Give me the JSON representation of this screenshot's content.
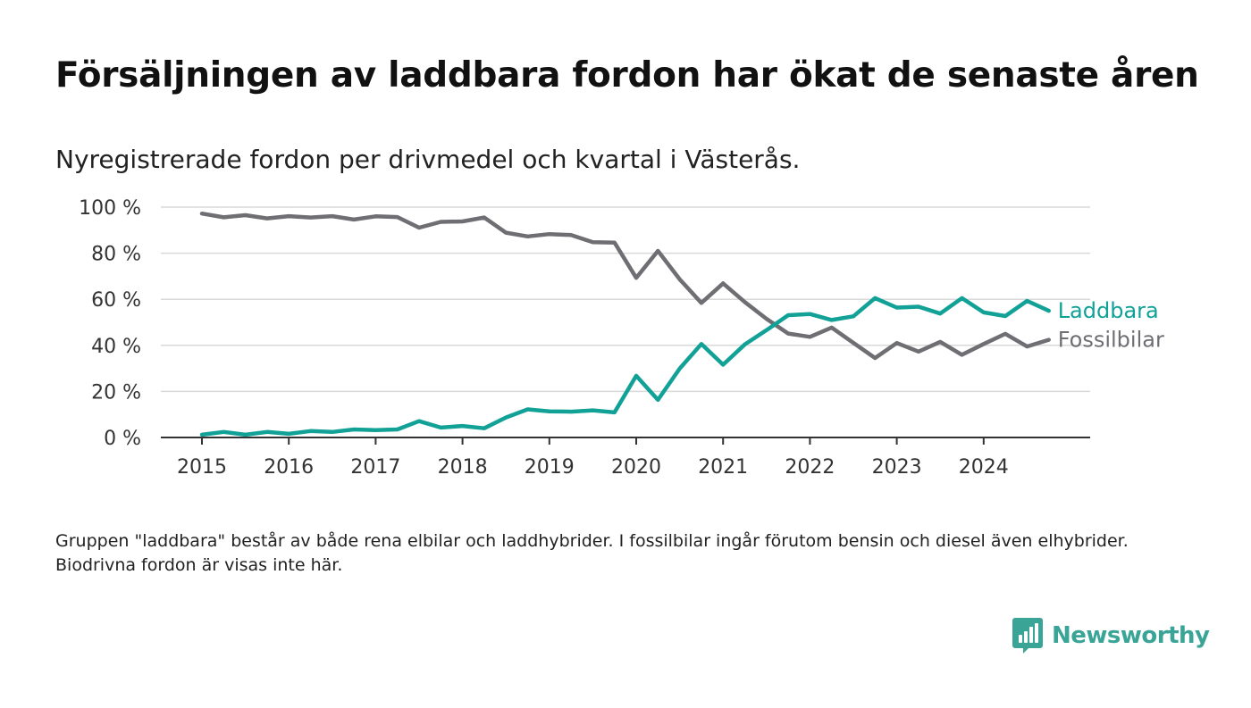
{
  "title": "Försäljningen av laddbara fordon har ökat de senaste åren",
  "subtitle": "Nyregistrerade fordon per drivmedel och kvartal i Västerås.",
  "note": "Gruppen \"laddbara\" består av både rena elbilar och laddhybrider. I fossilbilar ingår förutom bensin och diesel även elhybrider. Biodrivna fordon är visas inte här.",
  "brand": {
    "name": "Newsworthy",
    "icon": "newsworthy-logo-icon",
    "color": "#3aa597"
  },
  "chart_data": {
    "type": "line",
    "title": "Nyregistrerade fordon per drivmedel och kvartal i Västerås.",
    "xlabel": "",
    "ylabel": "",
    "ylim": [
      0,
      100
    ],
    "yticks": [
      0,
      20,
      40,
      60,
      80,
      100
    ],
    "ytick_labels": [
      "0 %",
      "20 %",
      "40 %",
      "60 %",
      "80 %",
      "100 %"
    ],
    "xticks": [
      "2015",
      "2016",
      "2017",
      "2018",
      "2019",
      "2020",
      "2021",
      "2022",
      "2023",
      "2024"
    ],
    "x": [
      "2015-Q1",
      "2015-Q2",
      "2015-Q3",
      "2015-Q4",
      "2016-Q1",
      "2016-Q2",
      "2016-Q3",
      "2016-Q4",
      "2017-Q1",
      "2017-Q2",
      "2017-Q3",
      "2017-Q4",
      "2018-Q1",
      "2018-Q2",
      "2018-Q3",
      "2018-Q4",
      "2019-Q1",
      "2019-Q2",
      "2019-Q3",
      "2019-Q4",
      "2020-Q1",
      "2020-Q2",
      "2020-Q3",
      "2020-Q4",
      "2021-Q1",
      "2021-Q2",
      "2021-Q3",
      "2021-Q4",
      "2022-Q1",
      "2022-Q2",
      "2022-Q3",
      "2022-Q4",
      "2023-Q1",
      "2023-Q2",
      "2023-Q3",
      "2023-Q4",
      "2024-Q1",
      "2024-Q2",
      "2024-Q3",
      "2024-Q4"
    ],
    "grid": true,
    "legend": "direct labels at line ends",
    "series": [
      {
        "name": "Laddbara",
        "color": "#12a196",
        "values": [
          1.2,
          2.4,
          1.2,
          2.4,
          1.6,
          2.8,
          2.4,
          3.5,
          3.2,
          3.5,
          7.1,
          4.3,
          5.0,
          4.0,
          8.7,
          12.2,
          11.3,
          11.2,
          11.8,
          10.9,
          26.8,
          16.3,
          29.9,
          40.6,
          31.6,
          40.4,
          46.6,
          53.1,
          53.6,
          51.0,
          52.6,
          60.5,
          56.4,
          56.8,
          53.8,
          60.5,
          54.3,
          52.7,
          59.3,
          55.0
        ]
      },
      {
        "name": "Fossilbilar",
        "color": "#6e6e73",
        "values": [
          97.2,
          95.6,
          96.5,
          95.1,
          96.1,
          95.5,
          96.1,
          94.6,
          96.0,
          95.7,
          91.1,
          93.6,
          93.8,
          95.5,
          88.9,
          87.3,
          88.3,
          87.9,
          84.8,
          84.6,
          69.3,
          81.0,
          68.7,
          58.4,
          66.9,
          58.8,
          51.5,
          45.1,
          43.7,
          47.7,
          41.1,
          34.5,
          41.0,
          37.3,
          41.5,
          35.9,
          40.6,
          45.0,
          39.5,
          42.4
        ]
      }
    ]
  }
}
